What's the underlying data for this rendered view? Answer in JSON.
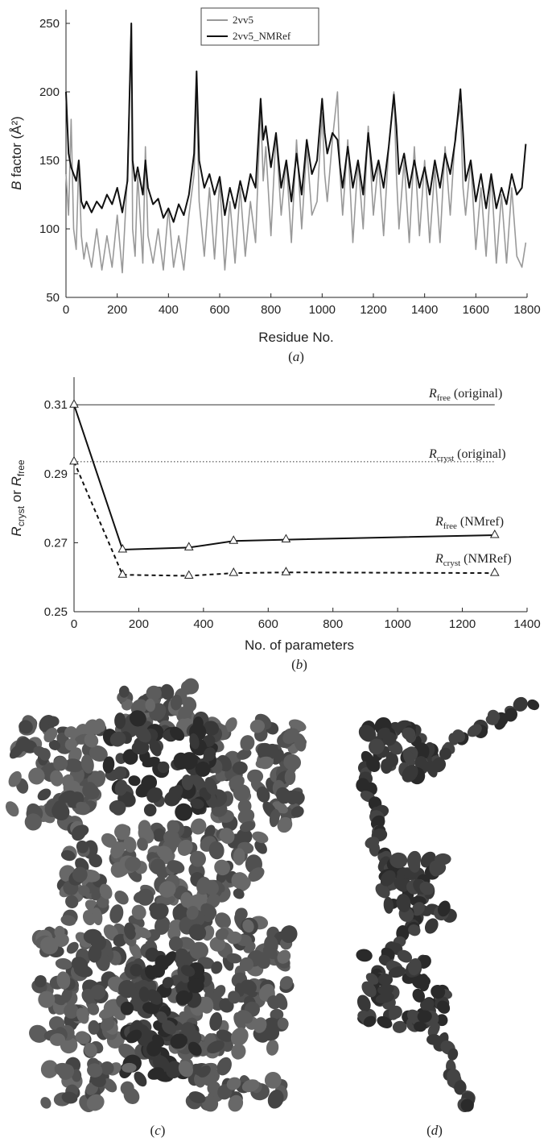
{
  "chart_data": [
    {
      "panel": "(a)",
      "type": "line",
      "xlabel": "Residue No.",
      "ylabel_italic": "B",
      "ylabel_rest": " factor (Å²)",
      "xlim": [
        0,
        1800
      ],
      "ylim": [
        50,
        260
      ],
      "xticks": [
        0,
        200,
        400,
        600,
        800,
        1000,
        1200,
        1400,
        1600,
        1800
      ],
      "yticks": [
        50,
        100,
        150,
        200,
        250
      ],
      "legend": "top-center",
      "series": [
        {
          "name": "2vv5",
          "color": "#999999",
          "x": [
            0,
            10,
            20,
            30,
            40,
            50,
            60,
            70,
            80,
            100,
            120,
            140,
            160,
            180,
            200,
            220,
            240,
            255,
            260,
            270,
            280,
            300,
            310,
            320,
            340,
            360,
            380,
            400,
            420,
            440,
            460,
            480,
            500,
            510,
            520,
            540,
            560,
            580,
            600,
            620,
            640,
            660,
            680,
            700,
            720,
            740,
            760,
            770,
            780,
            800,
            820,
            840,
            860,
            880,
            900,
            920,
            940,
            960,
            980,
            1000,
            1010,
            1020,
            1040,
            1060,
            1070,
            1080,
            1100,
            1120,
            1140,
            1160,
            1180,
            1200,
            1220,
            1240,
            1260,
            1280,
            1290,
            1300,
            1320,
            1340,
            1360,
            1380,
            1400,
            1420,
            1440,
            1460,
            1480,
            1500,
            1520,
            1540,
            1550,
            1560,
            1580,
            1600,
            1620,
            1640,
            1660,
            1680,
            1700,
            1720,
            1740,
            1760,
            1780,
            1795
          ],
          "y": [
            140,
            110,
            180,
            100,
            85,
            150,
            95,
            78,
            90,
            72,
            100,
            70,
            95,
            72,
            110,
            68,
            140,
            250,
            100,
            80,
            140,
            75,
            160,
            95,
            75,
            100,
            70,
            115,
            72,
            95,
            70,
            110,
            140,
            200,
            120,
            80,
            130,
            78,
            135,
            70,
            120,
            75,
            130,
            80,
            120,
            90,
            190,
            135,
            160,
            95,
            170,
            110,
            150,
            90,
            165,
            100,
            160,
            110,
            120,
            185,
            140,
            120,
            165,
            200,
            140,
            110,
            165,
            90,
            150,
            100,
            175,
            110,
            150,
            95,
            160,
            200,
            140,
            100,
            150,
            90,
            160,
            95,
            150,
            90,
            145,
            90,
            160,
            110,
            170,
            190,
            130,
            110,
            150,
            85,
            130,
            80,
            140,
            75,
            125,
            75,
            130,
            80,
            72,
            90
          ]
        },
        {
          "name": "2vv5_NMRef",
          "color": "#111111",
          "x": [
            0,
            10,
            20,
            30,
            40,
            50,
            60,
            70,
            80,
            100,
            120,
            140,
            160,
            180,
            200,
            220,
            240,
            255,
            260,
            270,
            280,
            300,
            310,
            320,
            340,
            360,
            380,
            400,
            420,
            440,
            460,
            480,
            500,
            510,
            520,
            540,
            560,
            580,
            600,
            620,
            640,
            660,
            680,
            700,
            720,
            740,
            760,
            770,
            780,
            800,
            820,
            840,
            860,
            880,
            900,
            920,
            940,
            960,
            980,
            1000,
            1010,
            1020,
            1040,
            1060,
            1070,
            1080,
            1100,
            1120,
            1140,
            1160,
            1180,
            1200,
            1220,
            1240,
            1260,
            1280,
            1290,
            1300,
            1320,
            1340,
            1360,
            1380,
            1400,
            1420,
            1440,
            1460,
            1480,
            1500,
            1520,
            1540,
            1550,
            1560,
            1580,
            1600,
            1620,
            1640,
            1660,
            1680,
            1700,
            1720,
            1740,
            1760,
            1780,
            1795
          ],
          "y": [
            200,
            155,
            145,
            140,
            135,
            150,
            120,
            115,
            120,
            112,
            120,
            115,
            125,
            118,
            130,
            112,
            135,
            250,
            150,
            135,
            145,
            125,
            150,
            130,
            118,
            122,
            108,
            115,
            105,
            118,
            110,
            125,
            155,
            215,
            150,
            130,
            140,
            125,
            138,
            110,
            130,
            115,
            135,
            120,
            140,
            130,
            195,
            165,
            175,
            145,
            170,
            130,
            150,
            120,
            155,
            125,
            165,
            140,
            150,
            195,
            170,
            155,
            170,
            165,
            145,
            130,
            160,
            130,
            150,
            125,
            170,
            135,
            150,
            130,
            160,
            198,
            175,
            140,
            155,
            130,
            150,
            130,
            145,
            125,
            150,
            130,
            155,
            140,
            165,
            202,
            170,
            135,
            150,
            120,
            140,
            115,
            140,
            115,
            130,
            118,
            140,
            125,
            130,
            162
          ]
        }
      ]
    },
    {
      "panel": "(b)",
      "type": "line",
      "xlabel": "No. of parameters",
      "ylabel_parts": [
        "R",
        "cryst",
        " or ",
        "R",
        "free"
      ],
      "xlim": [
        0,
        1400
      ],
      "ylim": [
        0.25,
        0.318
      ],
      "xticks": [
        0,
        200,
        400,
        600,
        800,
        1000,
        1200,
        1400
      ],
      "yticks": [
        0.25,
        0.27,
        0.29,
        0.31
      ],
      "ytick_labels": [
        "0.25",
        "0.27",
        "0.29",
        "0.31"
      ],
      "series": [
        {
          "name": "Rfree (NMref)",
          "style": "solid",
          "marker": "triangle",
          "x": [
            0,
            150,
            355,
            493,
            655,
            1300
          ],
          "y": [
            0.31,
            0.268,
            0.2686,
            0.2705,
            0.2709,
            0.2722
          ]
        },
        {
          "name": "Rcryst (NMRef)",
          "style": "dashed",
          "marker": "triangle",
          "x": [
            0,
            150,
            355,
            493,
            655,
            1300
          ],
          "y": [
            0.2935,
            0.2607,
            0.2604,
            0.2612,
            0.2614,
            0.2612
          ]
        }
      ],
      "reference_lines": [
        {
          "name": "Rfree (original)",
          "y": 0.31,
          "style": "solid"
        },
        {
          "name": "Rcryst (original)",
          "y": 0.2935,
          "style": "dotted"
        }
      ],
      "annotations": [
        {
          "main": "R",
          "sub": "free",
          "rest": " (original)"
        },
        {
          "main": "R",
          "sub": "cryst",
          "rest": " (original)"
        },
        {
          "main": "R",
          "sub": "free",
          "rest": " (NMref)"
        },
        {
          "main": "R",
          "sub": "cryst",
          "rest": " (NMRef)"
        }
      ]
    }
  ],
  "panel_labels": {
    "a": "(a)",
    "b": "(b)",
    "c": "(c)",
    "d": "(d)"
  }
}
